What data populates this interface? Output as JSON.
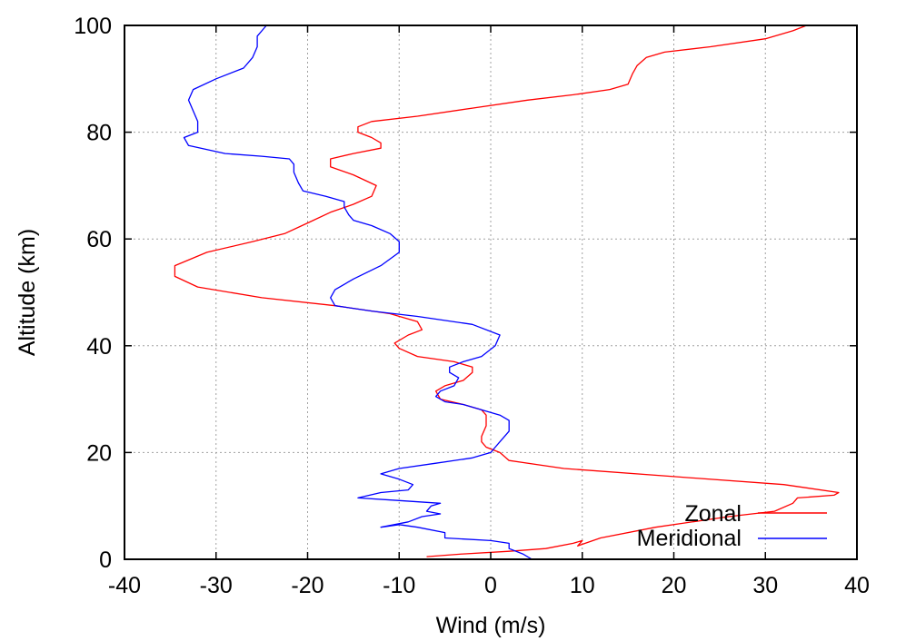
{
  "chart_data": {
    "type": "line",
    "title": "",
    "xlabel": "Wind (m/s)",
    "ylabel": "Altitude (km)",
    "xlim": [
      -40,
      40
    ],
    "ylim": [
      0,
      100
    ],
    "xticks": [
      -40,
      -30,
      -20,
      -10,
      0,
      10,
      20,
      30,
      40
    ],
    "yticks": [
      0,
      20,
      40,
      60,
      80,
      100
    ],
    "grid": true,
    "legend_position": "bottom-right",
    "series": [
      {
        "name": "Zonal",
        "color": "#ff0000",
        "points": [
          [
            -7,
            0.5
          ],
          [
            -3,
            1
          ],
          [
            2,
            1.5
          ],
          [
            6,
            2
          ],
          [
            9,
            3
          ],
          [
            10,
            3.5
          ],
          [
            9.5,
            2.5
          ],
          [
            12,
            4
          ],
          [
            18,
            6
          ],
          [
            26,
            8
          ],
          [
            31,
            9
          ],
          [
            33,
            10.5
          ],
          [
            33.5,
            11.5
          ],
          [
            37.5,
            12
          ],
          [
            38,
            12.5
          ],
          [
            32,
            14
          ],
          [
            20,
            15.5
          ],
          [
            8,
            17
          ],
          [
            2,
            18.5
          ],
          [
            1,
            20
          ],
          [
            -0.5,
            21
          ],
          [
            -1,
            22
          ],
          [
            -1,
            23
          ],
          [
            -0.5,
            25
          ],
          [
            -0.5,
            27
          ],
          [
            -1,
            28
          ],
          [
            -3,
            29
          ],
          [
            -5.5,
            30
          ],
          [
            -6,
            31.5
          ],
          [
            -5,
            32.5
          ],
          [
            -3,
            33.5
          ],
          [
            -2,
            35
          ],
          [
            -2,
            36
          ],
          [
            -4,
            37
          ],
          [
            -8,
            38
          ],
          [
            -10,
            39.5
          ],
          [
            -10.5,
            40.5
          ],
          [
            -9,
            42
          ],
          [
            -7.5,
            43
          ],
          [
            -8,
            44.5
          ],
          [
            -11,
            46
          ],
          [
            -17,
            47.5
          ],
          [
            -25,
            49
          ],
          [
            -32,
            51
          ],
          [
            -34.5,
            53
          ],
          [
            -34.5,
            55
          ],
          [
            -31,
            57.5
          ],
          [
            -26,
            59.5
          ],
          [
            -22.5,
            61
          ],
          [
            -20,
            63
          ],
          [
            -17.5,
            65
          ],
          [
            -15,
            66.5
          ],
          [
            -13,
            68
          ],
          [
            -12.5,
            70
          ],
          [
            -15,
            72
          ],
          [
            -17.5,
            73.5
          ],
          [
            -17.5,
            75
          ],
          [
            -15,
            76
          ],
          [
            -12,
            77
          ],
          [
            -12,
            78
          ],
          [
            -13,
            79
          ],
          [
            -14.5,
            80
          ],
          [
            -14.5,
            81
          ],
          [
            -13,
            82
          ],
          [
            -8,
            83
          ],
          [
            -2,
            84.5
          ],
          [
            4,
            86
          ],
          [
            9,
            87
          ],
          [
            13,
            88
          ],
          [
            15,
            89
          ],
          [
            15.5,
            91
          ],
          [
            16,
            92.5
          ],
          [
            17,
            94
          ],
          [
            19,
            95
          ],
          [
            24,
            96
          ],
          [
            30,
            97.5
          ],
          [
            33,
            99
          ],
          [
            34.5,
            100
          ]
        ]
      },
      {
        "name": "Meridional",
        "color": "#0000ff",
        "points": [
          [
            4.5,
            0
          ],
          [
            3.5,
            1
          ],
          [
            2,
            2
          ],
          [
            2,
            3
          ],
          [
            0,
            3.5
          ],
          [
            -5,
            4
          ],
          [
            -5,
            5
          ],
          [
            -8,
            6
          ],
          [
            -10,
            6.5
          ],
          [
            -12,
            6
          ],
          [
            -9,
            7
          ],
          [
            -7.5,
            8
          ],
          [
            -5.5,
            8.5
          ],
          [
            -7,
            9
          ],
          [
            -6.5,
            10
          ],
          [
            -5.5,
            10.5
          ],
          [
            -10,
            11
          ],
          [
            -14.5,
            11.5
          ],
          [
            -12,
            12.5
          ],
          [
            -9,
            13
          ],
          [
            -8.5,
            14
          ],
          [
            -10,
            15
          ],
          [
            -12,
            16
          ],
          [
            -10,
            17
          ],
          [
            -6,
            18
          ],
          [
            -2,
            19
          ],
          [
            0,
            20
          ],
          [
            0.5,
            21
          ],
          [
            1,
            22
          ],
          [
            2,
            24
          ],
          [
            2,
            26
          ],
          [
            1,
            27
          ],
          [
            -1,
            28
          ],
          [
            -3,
            29
          ],
          [
            -5,
            29.5
          ],
          [
            -6,
            30.5
          ],
          [
            -5.5,
            31.5
          ],
          [
            -4,
            32.5
          ],
          [
            -3.5,
            34
          ],
          [
            -4.5,
            35
          ],
          [
            -4.5,
            36
          ],
          [
            -3,
            37
          ],
          [
            -1,
            38
          ],
          [
            0.5,
            40
          ],
          [
            1,
            42
          ],
          [
            -2,
            44
          ],
          [
            -8,
            45.5
          ],
          [
            -13,
            46.5
          ],
          [
            -17,
            47.5
          ],
          [
            -17.5,
            49
          ],
          [
            -17,
            50.5
          ],
          [
            -15,
            52.5
          ],
          [
            -12,
            55
          ],
          [
            -10,
            57.5
          ],
          [
            -10,
            59.5
          ],
          [
            -11,
            61
          ],
          [
            -13,
            62.5
          ],
          [
            -15,
            63.5
          ],
          [
            -15.5,
            64.5
          ],
          [
            -16,
            66
          ],
          [
            -16,
            67
          ],
          [
            -18,
            68
          ],
          [
            -20.5,
            69
          ],
          [
            -21,
            70.5
          ],
          [
            -21.5,
            72.5
          ],
          [
            -21.5,
            74
          ],
          [
            -22,
            75
          ],
          [
            -25,
            75.5
          ],
          [
            -29,
            76
          ],
          [
            -33,
            77.5
          ],
          [
            -33.5,
            79
          ],
          [
            -32,
            80
          ],
          [
            -32,
            82
          ],
          [
            -32.5,
            84
          ],
          [
            -33,
            86
          ],
          [
            -32.5,
            88
          ],
          [
            -30,
            90
          ],
          [
            -27,
            92
          ],
          [
            -26,
            94
          ],
          [
            -25.5,
            96
          ],
          [
            -25.5,
            98
          ],
          [
            -24.5,
            100
          ]
        ]
      }
    ]
  }
}
